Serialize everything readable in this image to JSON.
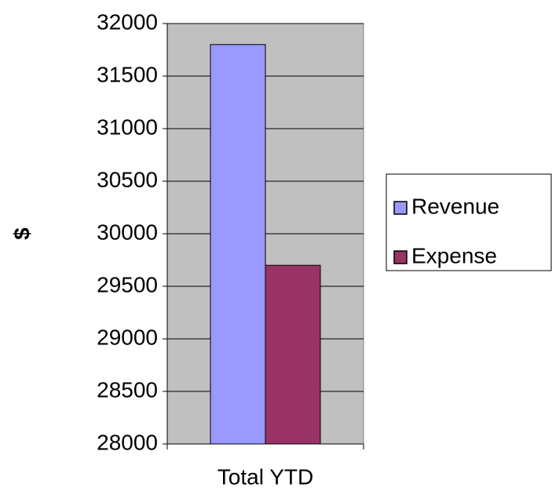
{
  "chart_data": {
    "type": "bar",
    "categories": [
      "Total YTD"
    ],
    "series": [
      {
        "name": "Revenue",
        "color": "#9999ff",
        "values": [
          31800
        ]
      },
      {
        "name": "Expense",
        "color": "#993366",
        "values": [
          29700
        ]
      }
    ],
    "y_label": "$",
    "ylim": [
      28000,
      32000
    ],
    "yticks": [
      28000,
      28500,
      29000,
      29500,
      30000,
      30500,
      31000,
      31500,
      32000
    ],
    "grid": true,
    "legend": "right"
  }
}
